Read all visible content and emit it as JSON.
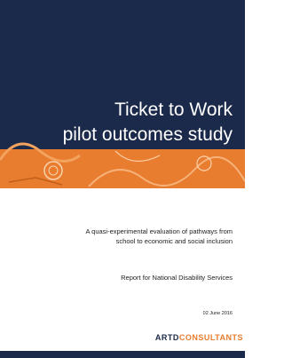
{
  "cover": {
    "title": [
      "Ticket to Work",
      "pilot outcomes study"
    ],
    "subtitle": [
      "A quasi-experimental evaluation of pathways from",
      "school to economic and social inclusion"
    ],
    "report_for": "Report for National Disability Services",
    "date": "02 June 2016",
    "logo": {
      "brand": "ARTD",
      "name": "CONSULTANTS"
    }
  }
}
